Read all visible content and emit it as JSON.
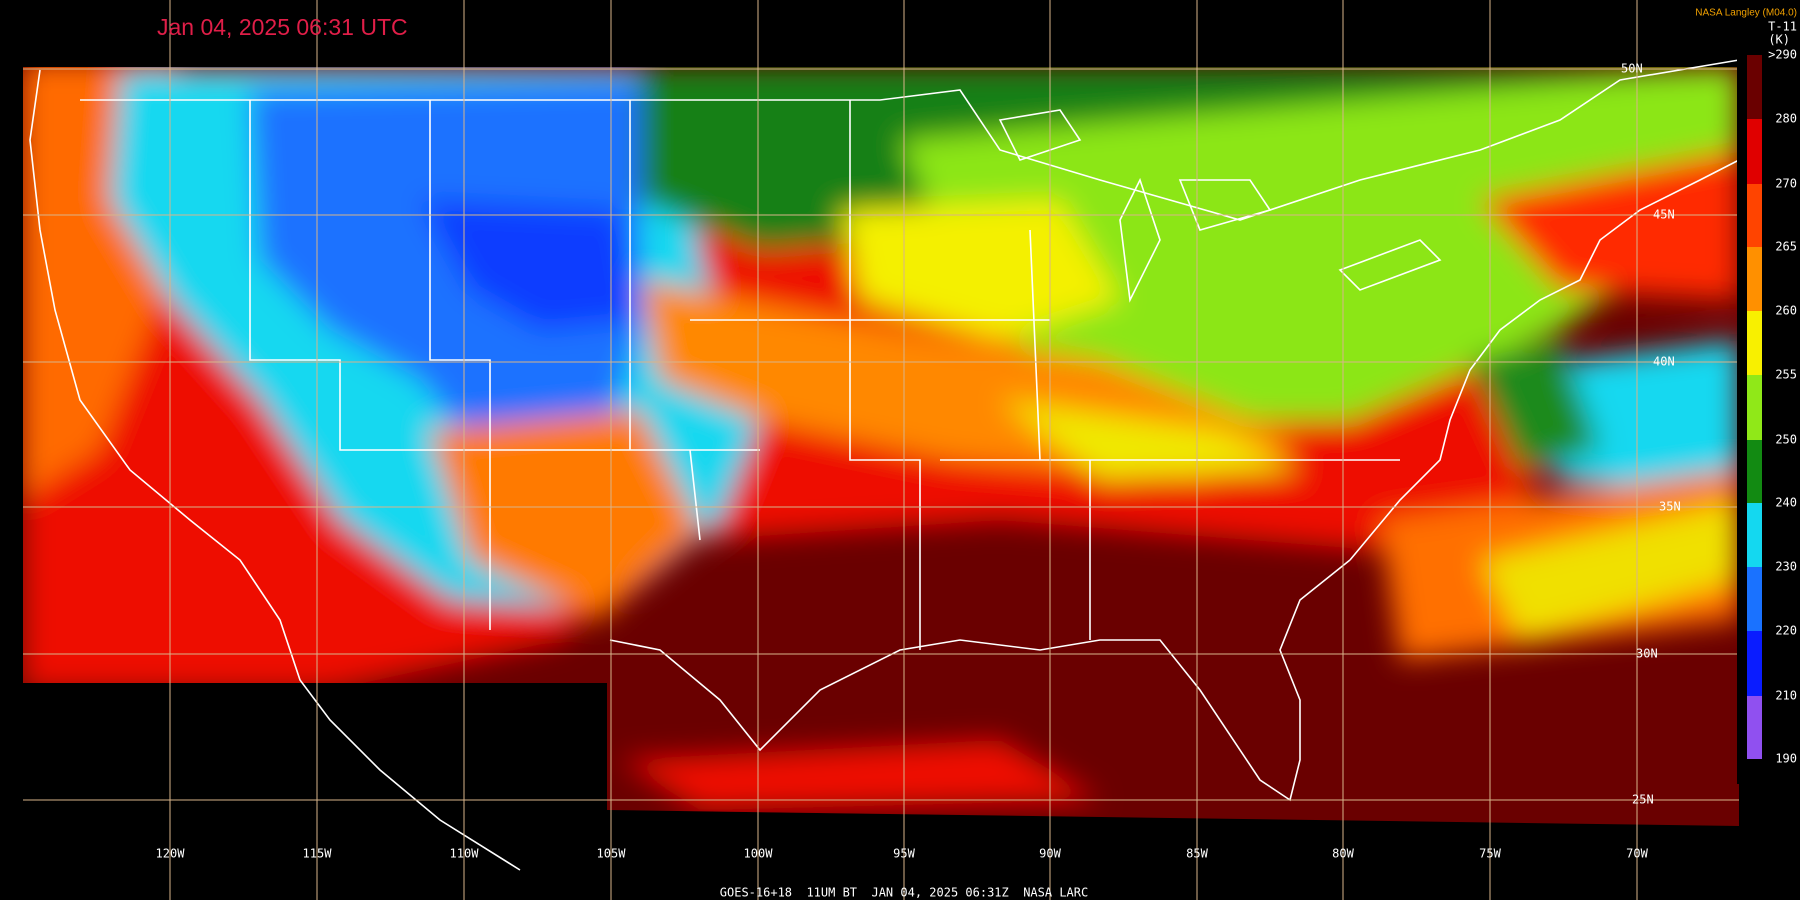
{
  "header": {
    "title": "Jan 04, 2025 06:31 UTC",
    "credit": "NASA Langley (M04.0)"
  },
  "colorbar": {
    "product": "T-11",
    "unit": "(K)",
    "labels": [
      ">290",
      280,
      270,
      265,
      260,
      255,
      250,
      240,
      230,
      220,
      210,
      190
    ]
  },
  "latitude_labels": [
    "50N",
    "45N",
    "40N",
    "35N",
    "30N",
    "25N"
  ],
  "longitude_labels": [
    "120W",
    "115W",
    "110W",
    "105W",
    "100W",
    "95W",
    "90W",
    "85W",
    "80W",
    "75W",
    "70W"
  ],
  "footer": "GOES-16+18  11UM BT  JAN 04, 2025 06:31Z  NASA LARC"
}
